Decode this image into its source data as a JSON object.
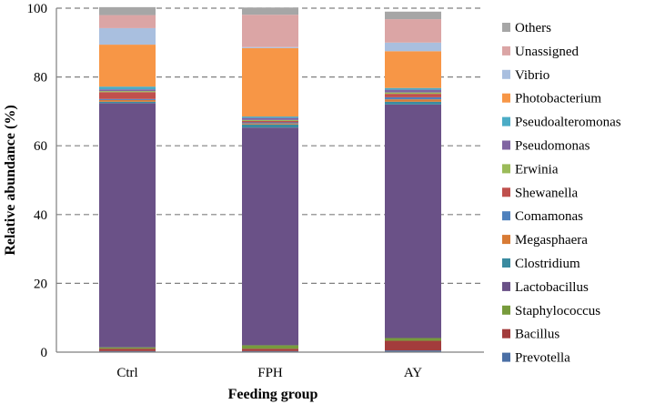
{
  "chart_data": {
    "type": "stacked-bar",
    "title": "",
    "xlabel": "Feeding group",
    "ylabel": "Relative abundance (%)",
    "ylim": [
      0,
      100
    ],
    "yticks": [
      0,
      20,
      40,
      60,
      80,
      100
    ],
    "grid": "horizontal dashed",
    "legend": "right",
    "categories": [
      "Ctrl",
      "FPH",
      "AY"
    ],
    "series": [
      {
        "name": "Prevotella",
        "color": "#4a6fa5",
        "values": [
          0.3,
          0.3,
          0.5
        ]
      },
      {
        "name": "Bacillus",
        "color": "#a33c3c",
        "values": [
          0.7,
          0.7,
          2.8
        ]
      },
      {
        "name": "Staphylococcus",
        "color": "#779b3c",
        "values": [
          0.4,
          1.0,
          0.8
        ]
      },
      {
        "name": "Lactobacillus",
        "color": "#6a5187",
        "values": [
          71.0,
          63.3,
          67.9
        ]
      },
      {
        "name": "Clostridium",
        "color": "#3a8ba0",
        "values": [
          0.4,
          0.9,
          0.8
        ]
      },
      {
        "name": "Megasphaera",
        "color": "#d87b35",
        "values": [
          0.5,
          0.3,
          0.7
        ]
      },
      {
        "name": "Comamonas",
        "color": "#4f81bd",
        "values": [
          0.3,
          0.3,
          0.6
        ]
      },
      {
        "name": "Shewanella",
        "color": "#c0504d",
        "values": [
          2.0,
          0.4,
          1.0
        ]
      },
      {
        "name": "Erwinia",
        "color": "#9bbb59",
        "values": [
          0.3,
          0.3,
          0.4
        ]
      },
      {
        "name": "Pseudomonas",
        "color": "#8064a2",
        "values": [
          0.5,
          0.6,
          0.8
        ]
      },
      {
        "name": "Pseudoalteromonas",
        "color": "#4bacc6",
        "values": [
          0.8,
          0.4,
          0.5
        ]
      },
      {
        "name": "Photobacterium",
        "color": "#f79646",
        "values": [
          12.2,
          19.9,
          10.7
        ]
      },
      {
        "name": "Vibrio",
        "color": "#a9bfdf",
        "values": [
          4.8,
          0.3,
          2.5
        ]
      },
      {
        "name": "Unassigned",
        "color": "#dba5a5",
        "values": [
          3.8,
          9.4,
          6.8
        ]
      },
      {
        "name": "Others",
        "color": "#a6a6a6",
        "values": [
          2.3,
          2.1,
          2.2
        ]
      }
    ]
  }
}
